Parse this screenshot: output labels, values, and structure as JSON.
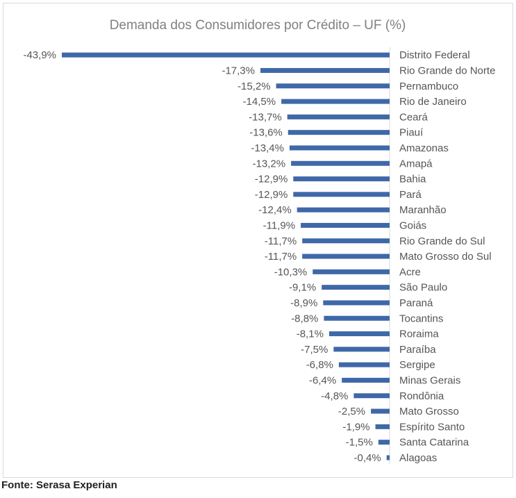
{
  "chart_data": {
    "type": "bar",
    "orientation": "horizontal",
    "title": "Demanda dos Consumidores por Crédito – UF (%)",
    "categories": [
      "Distrito Federal",
      "Rio Grande do Norte",
      "Pernambuco",
      "Rio de Janeiro",
      "Ceará",
      "Piauí",
      "Amazonas",
      "Amapá",
      "Bahia",
      "Pará",
      "Maranhão",
      "Goiás",
      "Rio Grande do Sul",
      "Mato Grosso do Sul",
      "Acre",
      "São Paulo",
      "Paraná",
      "Tocantins",
      "Roraima",
      "Paraíba",
      "Sergipe",
      "Minas Gerais",
      "Rondônia",
      "Mato Grosso",
      "Espírito Santo",
      "Santa Catarina",
      "Alagoas"
    ],
    "values": [
      -43.9,
      -17.3,
      -15.2,
      -14.5,
      -13.7,
      -13.6,
      -13.4,
      -13.2,
      -12.9,
      -12.9,
      -12.4,
      -11.9,
      -11.7,
      -11.7,
      -10.3,
      -9.1,
      -8.9,
      -8.8,
      -8.1,
      -7.5,
      -6.8,
      -6.4,
      -4.8,
      -2.5,
      -1.9,
      -1.5,
      -0.4
    ],
    "value_labels": [
      "-43,9%",
      "-17,3%",
      "-15,2%",
      "-14,5%",
      "-13,7%",
      "-13,6%",
      "-13,4%",
      "-13,2%",
      "-12,9%",
      "-12,9%",
      "-12,4%",
      "-11,9%",
      "-11,7%",
      "-11,7%",
      "-10,3%",
      "-9,1%",
      "-8,9%",
      "-8,8%",
      "-8,1%",
      "-7,5%",
      "-6,8%",
      "-6,4%",
      "-4,8%",
      "-2,5%",
      "-1,9%",
      "-1,5%",
      "-0,4%"
    ],
    "bar_color": "#3f68a8",
    "xlim": [
      -43.9,
      0
    ],
    "grid": false,
    "legend": "none"
  },
  "footer": {
    "source": "Fonte: Serasa Experian"
  }
}
